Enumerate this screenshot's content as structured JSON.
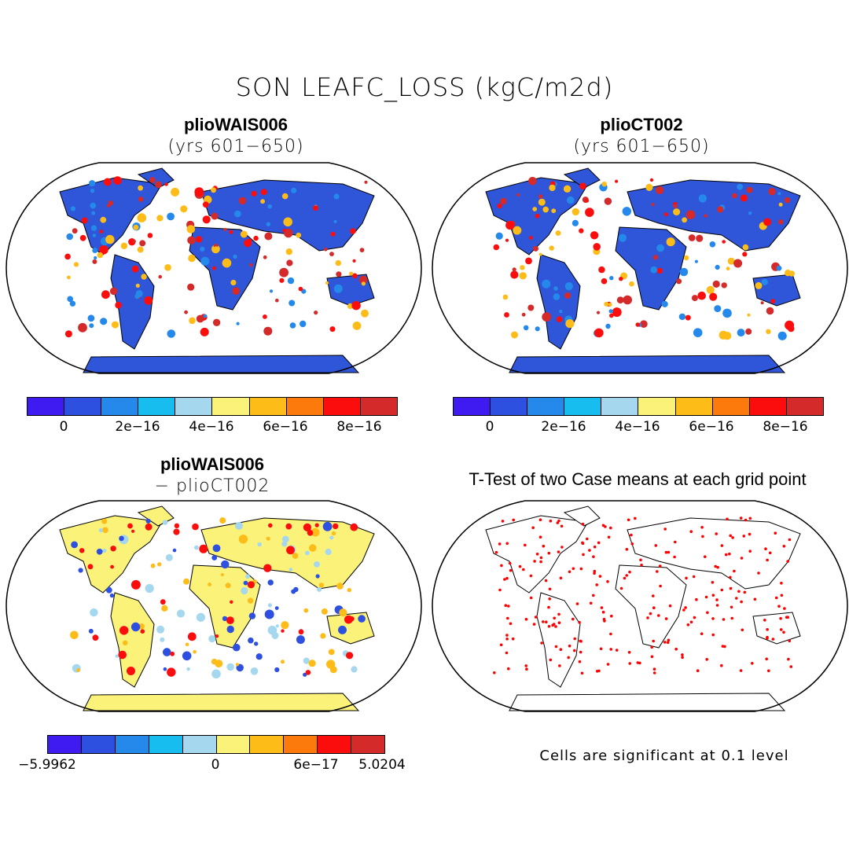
{
  "title": "SON LEAFC_LOSS (kgC/m2d)",
  "panels": {
    "top_left": {
      "title": "plioWAIS006",
      "subtitle": "(yrs 601−650)"
    },
    "top_right": {
      "title": "plioCT002",
      "subtitle": "(yrs 601−650)"
    },
    "bottom_left": {
      "title": "plioWAIS006",
      "subtitle": "− plioCT002"
    },
    "bottom_right": {
      "title": "T-Test of two Case means at each grid point",
      "note": "Cells are significant at 0.1 level"
    }
  },
  "colorbar_colors": [
    "#3f1bf2",
    "#2e50e0",
    "#2489eb",
    "#18bdf0",
    "#a5d8ef",
    "#fbf27a",
    "#fdbc17",
    "#fc7a0c",
    "#fb0d0d",
    "#d42a2a"
  ],
  "colorbar_top": {
    "ticks": [
      "0",
      "2e−16",
      "4e−16",
      "6e−16",
      "8e−16"
    ]
  },
  "colorbar_bottom": {
    "ticks": [
      "−5.9962",
      "0",
      "6e−17",
      "5.0204"
    ]
  },
  "colors": {
    "ocean": "#ffffff",
    "land_base": "#2f55d8",
    "diff_base": "#fbf27a",
    "sig": "#ff0000"
  }
}
